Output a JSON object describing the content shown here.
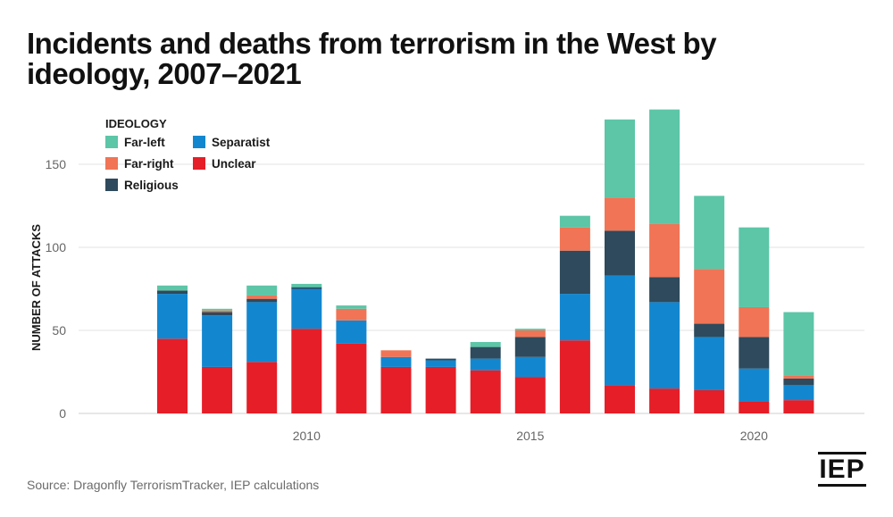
{
  "title": "Incidents and deaths from terrorism in the West by ideology, 2007–2021",
  "source": "Source: Dragonfly TerrorismTracker, IEP calculations",
  "logo": "IEP",
  "colors": {
    "far_left": "#5cc6a7",
    "far_right": "#f07455",
    "religious": "#2e4a5c",
    "separatist": "#1287cf",
    "unclear": "#e51e27",
    "grid": "#e3e3e3",
    "text": "#1a1a1a",
    "tick": "#666666"
  },
  "chart_data": {
    "type": "bar",
    "stacked": true,
    "title": "Incidents and deaths from terrorism in the West by ideology, 2007–2021",
    "xlabel": "",
    "ylabel": "NUMBER OF ATTACKS",
    "ylim": [
      0,
      190
    ],
    "yticks": [
      0,
      50,
      100,
      150
    ],
    "x_tick_labels": [
      "2010",
      "2015",
      "2020"
    ],
    "grid": true,
    "legend_title": "IDEOLOGY",
    "legend_position": "top-left",
    "categories": [
      2007,
      2008,
      2009,
      2010,
      2011,
      2012,
      2013,
      2014,
      2015,
      2016,
      2017,
      2018,
      2019,
      2020,
      2021
    ],
    "series": [
      {
        "name": "Unclear",
        "key": "unclear",
        "values": [
          45,
          28,
          31,
          51,
          42,
          28,
          28,
          26,
          22,
          44,
          17,
          15,
          14,
          7,
          8
        ]
      },
      {
        "name": "Separatist",
        "key": "separatist",
        "values": [
          27,
          31,
          36,
          24,
          14,
          6,
          4,
          7,
          12,
          28,
          66,
          52,
          32,
          20,
          9
        ]
      },
      {
        "name": "Religious",
        "key": "religious",
        "values": [
          2,
          2,
          2,
          1,
          0,
          0,
          1,
          7,
          12,
          26,
          27,
          15,
          8,
          19,
          4
        ]
      },
      {
        "name": "Far-right",
        "key": "far_right",
        "values": [
          0,
          1,
          2,
          0,
          7,
          4,
          0,
          0,
          4,
          14,
          20,
          32,
          33,
          18,
          2
        ]
      },
      {
        "name": "Far-left",
        "key": "far_left",
        "values": [
          3,
          1,
          6,
          2,
          2,
          0,
          0,
          3,
          1,
          7,
          47,
          69,
          44,
          48,
          38
        ]
      }
    ],
    "legend": [
      {
        "label": "Far-left",
        "key": "far_left"
      },
      {
        "label": "Separatist",
        "key": "separatist"
      },
      {
        "label": "Far-right",
        "key": "far_right"
      },
      {
        "label": "Unclear",
        "key": "unclear"
      },
      {
        "label": "Religious",
        "key": "religious"
      }
    ]
  }
}
